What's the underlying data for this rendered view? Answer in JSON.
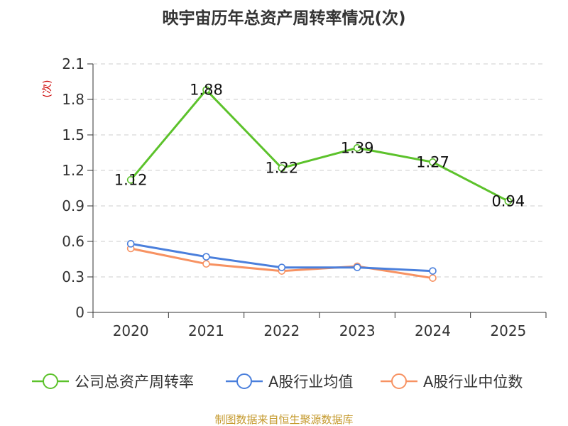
{
  "chart_data": {
    "type": "line",
    "title": "映宇宙历年总资产周转率情况(次)",
    "ylabel": "(次)",
    "categories": [
      "2020",
      "2021",
      "2022",
      "2023",
      "2024",
      "2025"
    ],
    "ylim": [
      0,
      2.1
    ],
    "yticks": [
      "0",
      "0.3",
      "0.6",
      "0.9",
      "1.2",
      "1.5",
      "1.8",
      "2.1"
    ],
    "grid": true,
    "legend_position": "bottom",
    "series": [
      {
        "name": "公司总资产周转率",
        "color": "#5cc22b",
        "values": [
          1.12,
          1.88,
          1.22,
          1.39,
          1.27,
          0.94
        ],
        "labels": [
          "1.12",
          "1.88",
          "1.22",
          "1.39",
          "1.27",
          "0.94"
        ]
      },
      {
        "name": "A股行业均值",
        "color": "#4a7fdc",
        "values": [
          0.58,
          0.47,
          0.38,
          0.38,
          0.35,
          null
        ]
      },
      {
        "name": "A股行业中位数",
        "color": "#f79262",
        "values": [
          0.54,
          0.41,
          0.35,
          0.39,
          0.29,
          null
        ]
      }
    ]
  },
  "source": "制图数据来自恒生聚源数据库",
  "colors": {
    "axis": "#333333",
    "grid": "#cccccc",
    "ylabel": "#cc0000",
    "source": "#c59a2e"
  }
}
